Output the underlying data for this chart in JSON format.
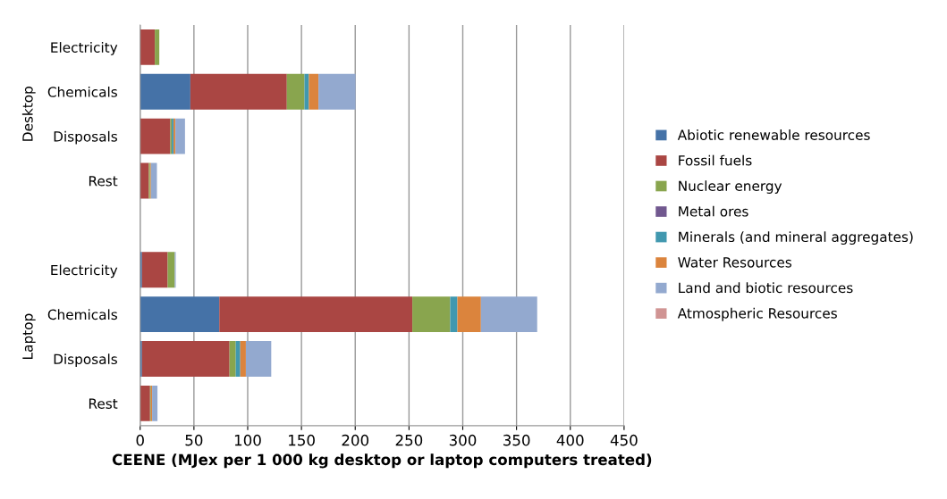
{
  "chart_data": {
    "type": "bar",
    "orientation": "horizontal",
    "stacked": true,
    "categories": [
      "Electricity",
      "Chemicals",
      "Disposals",
      "Rest",
      null,
      "Electricity",
      "Chemicals",
      "Disposals",
      "Rest"
    ],
    "series": [
      {
        "name": "Abiotic renewable resources",
        "color": "#4572a7",
        "values": [
          0,
          46.7,
          0,
          0,
          null,
          1.7,
          73.6,
          1.7,
          0
        ]
      },
      {
        "name": "Fossil fuels",
        "color": "#aa4643",
        "values": [
          13.6,
          89.7,
          28.1,
          8.1,
          null,
          23.9,
          179.5,
          81.4,
          9.2
        ]
      },
      {
        "name": "Nuclear energy",
        "color": "#89a54e",
        "values": [
          4.2,
          16.4,
          1.3,
          1.1,
          null,
          6.6,
          35.2,
          5.8,
          0.8
        ]
      },
      {
        "name": "Metal ores",
        "color": "#71588f",
        "values": [
          0,
          0,
          0,
          0,
          null,
          0,
          0,
          0,
          0
        ]
      },
      {
        "name": "Minerals (and mineral aggregates)",
        "color": "#4198af",
        "values": [
          0,
          4.1,
          1.7,
          0,
          null,
          0,
          6.7,
          4.2,
          0
        ]
      },
      {
        "name": "Water Resources",
        "color": "#db843d",
        "values": [
          0,
          8.9,
          1.7,
          0.8,
          null,
          0,
          21.9,
          5.2,
          1.1
        ]
      },
      {
        "name": "Land and biotic resources",
        "color": "#93a9cf",
        "values": [
          0,
          34.5,
          8.9,
          5.6,
          null,
          0.9,
          52.3,
          23.6,
          5
        ]
      },
      {
        "name": "Atmospheric Resources",
        "color": "#d09493",
        "values": [
          0,
          0,
          0,
          0,
          null,
          0,
          0,
          0,
          0
        ]
      }
    ],
    "xlabel": "CEENE (MJex per 1 000 kg desktop or laptop computers treated)",
    "xlim": [
      0,
      450
    ],
    "xticks": [
      0,
      50,
      100,
      150,
      200,
      250,
      300,
      350,
      400,
      450
    ],
    "grid": "x",
    "legend": "right",
    "annotations": [
      "Desktop",
      "Laptop"
    ]
  }
}
